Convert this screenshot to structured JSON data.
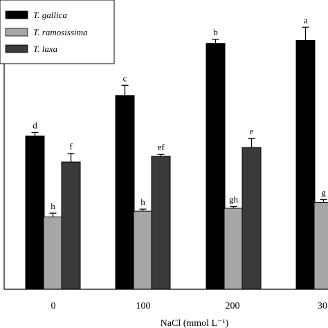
{
  "chart_data": {
    "type": "bar",
    "categories": [
      "0",
      "100",
      "200",
      "30"
    ],
    "xlabel": "NaCl (mmol L⁻¹)",
    "ylabel": "",
    "title": "",
    "ylim": [
      0,
      100
    ],
    "grid": false,
    "legend_position": "top-left",
    "series": [
      {
        "name": "T. gallica",
        "color": "#000000",
        "values": [
          53,
          67,
          85,
          86
        ],
        "errors": [
          1.2,
          3.5,
          1.4,
          4.6
        ],
        "labels": [
          "d",
          "c",
          "b",
          "a"
        ]
      },
      {
        "name": "T. ramosissima",
        "color": "#a6a6a6",
        "values": [
          25,
          27,
          28,
          30
        ],
        "errors": [
          1.3,
          0.7,
          0.6,
          1.0
        ],
        "labels": [
          "h",
          "h",
          "gh",
          "g"
        ]
      },
      {
        "name": "T. laxa",
        "color": "#3a3a3a",
        "values": [
          44,
          46,
          49,
          null
        ],
        "errors": [
          2.9,
          0.6,
          3.1,
          null
        ],
        "labels": [
          "f",
          "ef",
          "e",
          ""
        ]
      }
    ]
  }
}
